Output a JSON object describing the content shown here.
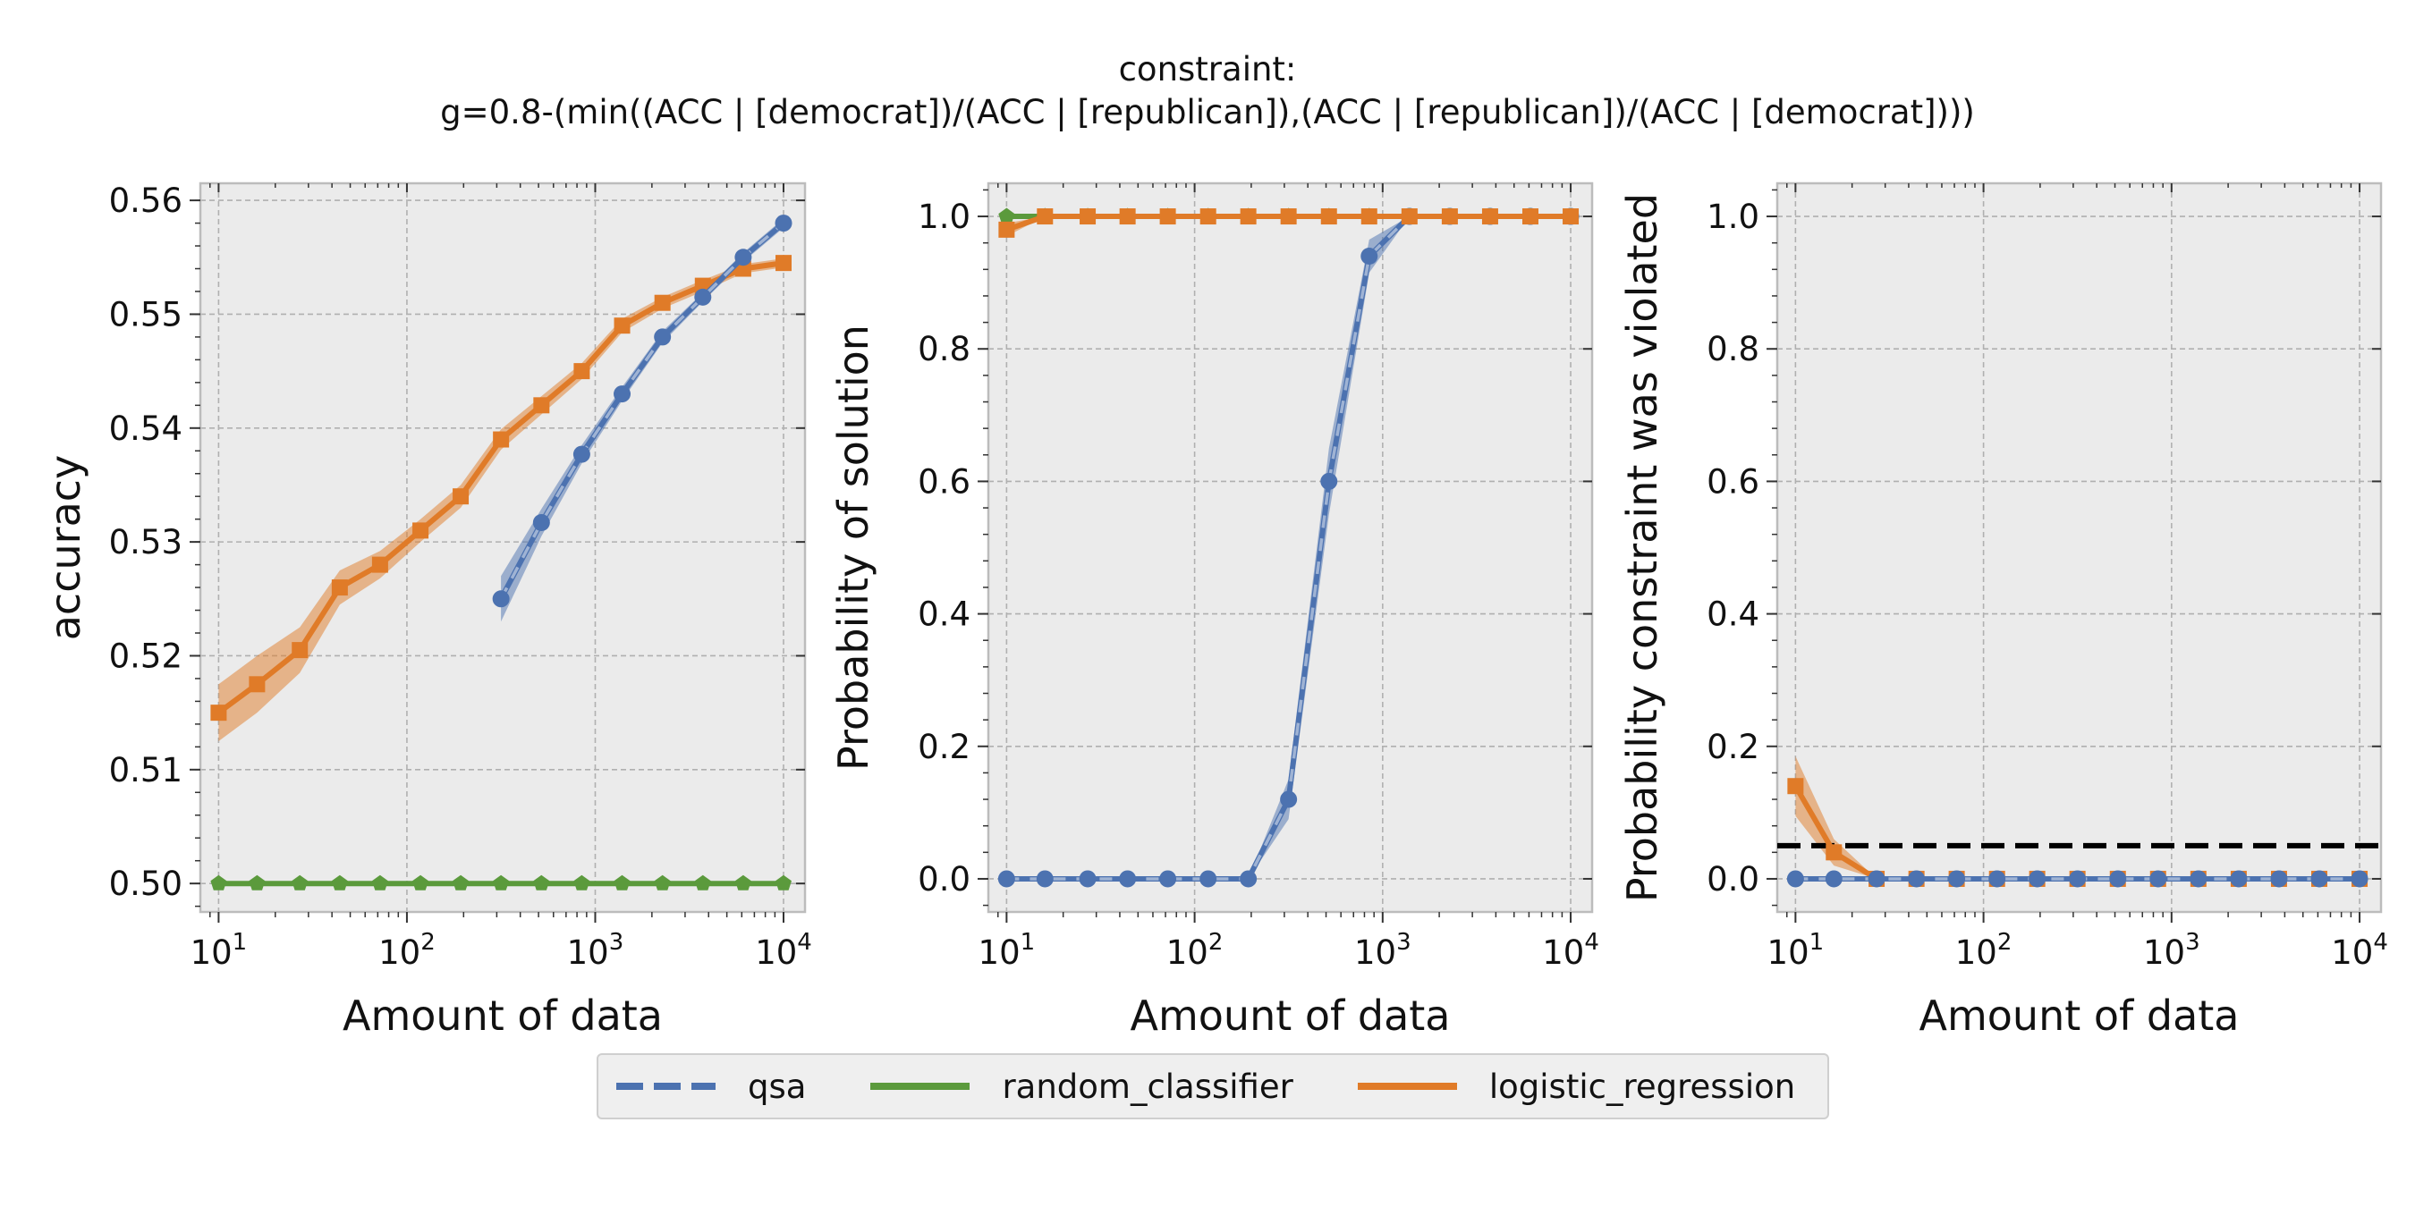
{
  "title": {
    "line1": "constraint:",
    "line2": "g=0.8-(min((ACC | [democrat])/(ACC | [republican]),(ACC | [republican])/(ACC | [democrat])))"
  },
  "legend": {
    "items": [
      {
        "label": "qsa",
        "color": "#4c72b0",
        "style": "dashed"
      },
      {
        "label": "random_classifier",
        "color": "#5b9a3c",
        "style": "solid"
      },
      {
        "label": "logistic_regression",
        "color": "#e07b28",
        "style": "solid"
      }
    ]
  },
  "chart_data": [
    {
      "type": "line",
      "xlabel": "Amount of data",
      "ylabel": "accuracy",
      "xscale": "log",
      "xlim": [
        8,
        13000
      ],
      "ylim": [
        0.4975,
        0.5615
      ],
      "xticks": [
        10,
        100,
        1000,
        10000
      ],
      "xtick_labels": [
        "10^1",
        "10^2",
        "10^3",
        "10^4"
      ],
      "yticks": [
        0.5,
        0.51,
        0.52,
        0.53,
        0.54,
        0.55,
        0.56
      ],
      "ytick_labels": [
        "0.50",
        "0.51",
        "0.52",
        "0.53",
        "0.54",
        "0.55",
        "0.56"
      ],
      "grid": true,
      "series": [
        {
          "name": "logistic_regression",
          "color": "#e07b28",
          "marker": "square",
          "x": [
            10,
            16,
            27,
            44,
            72,
            118,
            193,
            316,
            518,
            848,
            1389,
            2276,
            3728,
            6105,
            10000
          ],
          "y": [
            0.515,
            0.5175,
            0.5205,
            0.526,
            0.528,
            0.531,
            0.534,
            0.539,
            0.542,
            0.545,
            0.549,
            0.551,
            0.5525,
            0.554,
            0.5545
          ],
          "band": [
            0.0025,
            0.0025,
            0.002,
            0.0015,
            0.0012,
            0.001,
            0.001,
            0.0009,
            0.0008,
            0.0007,
            0.0006,
            0.0005,
            0.0005,
            0.0004,
            0.0004
          ]
        },
        {
          "name": "qsa",
          "color": "#4c72b0",
          "marker": "circle",
          "x": [
            316,
            518,
            848,
            1389,
            2276,
            3728,
            6105,
            10000
          ],
          "y": [
            0.525,
            0.5317,
            0.5377,
            0.543,
            0.548,
            0.5515,
            0.555,
            0.558
          ],
          "band": [
            0.002,
            0.0012,
            0.0008,
            0.0006,
            0.0005,
            0.0004,
            0.0004,
            0.0004
          ]
        },
        {
          "name": "random_classifier",
          "color": "#5b9a3c",
          "marker": "pentagon",
          "x": [
            10,
            16,
            27,
            44,
            72,
            118,
            193,
            316,
            518,
            848,
            1389,
            2276,
            3728,
            6105,
            10000
          ],
          "y": [
            0.5,
            0.5,
            0.5,
            0.5,
            0.5,
            0.5,
            0.5,
            0.5,
            0.5,
            0.5,
            0.5,
            0.5,
            0.5,
            0.5,
            0.5
          ],
          "band": [
            0,
            0,
            0,
            0,
            0,
            0,
            0,
            0,
            0,
            0,
            0,
            0,
            0,
            0,
            0
          ]
        }
      ]
    },
    {
      "type": "line",
      "xlabel": "Amount of data",
      "ylabel": "Probability of solution",
      "xscale": "log",
      "xlim": [
        8,
        13000
      ],
      "ylim": [
        -0.05,
        1.05
      ],
      "xticks": [
        10,
        100,
        1000,
        10000
      ],
      "xtick_labels": [
        "10^1",
        "10^2",
        "10^3",
        "10^4"
      ],
      "yticks": [
        0.0,
        0.2,
        0.4,
        0.6,
        0.8,
        1.0
      ],
      "ytick_labels": [
        "0.0",
        "0.2",
        "0.4",
        "0.6",
        "0.8",
        "1.0"
      ],
      "grid": true,
      "series": [
        {
          "name": "qsa",
          "color": "#4c72b0",
          "marker": "circle",
          "x": [
            10,
            16,
            27,
            44,
            72,
            118,
            193,
            316,
            518,
            848,
            1389,
            2276,
            3728,
            6105,
            10000
          ],
          "y": [
            0,
            0,
            0,
            0,
            0,
            0,
            0,
            0.12,
            0.6,
            0.94,
            1.0,
            1.0,
            1.0,
            1.0,
            1.0
          ],
          "band": [
            0,
            0,
            0,
            0,
            0,
            0,
            0,
            0.03,
            0.05,
            0.025,
            0,
            0,
            0,
            0,
            0
          ]
        },
        {
          "name": "random_classifier",
          "color": "#5b9a3c",
          "marker": "pentagon",
          "x": [
            10,
            16,
            27,
            44,
            72,
            118,
            193,
            316,
            518,
            848,
            1389,
            2276,
            3728,
            6105,
            10000
          ],
          "y": [
            1,
            1,
            1,
            1,
            1,
            1,
            1,
            1,
            1,
            1,
            1,
            1,
            1,
            1,
            1
          ],
          "band": [
            0,
            0,
            0,
            0,
            0,
            0,
            0,
            0,
            0,
            0,
            0,
            0,
            0,
            0,
            0
          ]
        },
        {
          "name": "logistic_regression",
          "color": "#e07b28",
          "marker": "square",
          "x": [
            10,
            16,
            27,
            44,
            72,
            118,
            193,
            316,
            518,
            848,
            1389,
            2276,
            3728,
            6105,
            10000
          ],
          "y": [
            0.98,
            1,
            1,
            1,
            1,
            1,
            1,
            1,
            1,
            1,
            1,
            1,
            1,
            1,
            1
          ],
          "band": [
            0.01,
            0,
            0,
            0,
            0,
            0,
            0,
            0,
            0,
            0,
            0,
            0,
            0,
            0,
            0
          ]
        }
      ]
    },
    {
      "type": "line",
      "xlabel": "Amount of data",
      "ylabel": "Probability constraint was violated",
      "xscale": "log",
      "xlim": [
        8,
        13000
      ],
      "ylim": [
        -0.05,
        1.05
      ],
      "xticks": [
        10,
        100,
        1000,
        10000
      ],
      "xtick_labels": [
        "10^1",
        "10^2",
        "10^3",
        "10^4"
      ],
      "yticks": [
        0.0,
        0.2,
        0.4,
        0.6,
        0.8,
        1.0
      ],
      "ytick_labels": [
        "0.0",
        "0.2",
        "0.4",
        "0.6",
        "0.8",
        "1.0"
      ],
      "grid": true,
      "hline": {
        "y": 0.05,
        "color": "#000000",
        "style": "dashed"
      },
      "series": [
        {
          "name": "logistic_regression",
          "color": "#e07b28",
          "marker": "square",
          "x": [
            10,
            16,
            27,
            44,
            72,
            118,
            193,
            316,
            518,
            848,
            1389,
            2276,
            3728,
            6105,
            10000
          ],
          "y": [
            0.14,
            0.04,
            0,
            0,
            0,
            0,
            0,
            0,
            0,
            0,
            0,
            0,
            0,
            0,
            0
          ],
          "band": [
            0.045,
            0.02,
            0,
            0,
            0,
            0,
            0,
            0,
            0,
            0,
            0,
            0,
            0,
            0,
            0
          ]
        },
        {
          "name": "random_classifier",
          "color": "#5b9a3c",
          "marker": "pentagon",
          "x": [
            10,
            16,
            27,
            44,
            72,
            118,
            193,
            316,
            518,
            848,
            1389,
            2276,
            3728,
            6105,
            10000
          ],
          "y": [
            0,
            0,
            0,
            0,
            0,
            0,
            0,
            0,
            0,
            0,
            0,
            0,
            0,
            0,
            0
          ],
          "band": [
            0,
            0,
            0,
            0,
            0,
            0,
            0,
            0,
            0,
            0,
            0,
            0,
            0,
            0,
            0
          ]
        },
        {
          "name": "qsa",
          "color": "#4c72b0",
          "marker": "circle",
          "x": [
            10,
            16,
            27,
            44,
            72,
            118,
            193,
            316,
            518,
            848,
            1389,
            2276,
            3728,
            6105,
            10000
          ],
          "y": [
            0,
            0,
            0,
            0,
            0,
            0,
            0,
            0,
            0,
            0,
            0,
            0,
            0,
            0,
            0
          ],
          "band": [
            0,
            0,
            0,
            0,
            0,
            0,
            0,
            0,
            0,
            0,
            0,
            0,
            0,
            0,
            0
          ]
        }
      ]
    }
  ]
}
